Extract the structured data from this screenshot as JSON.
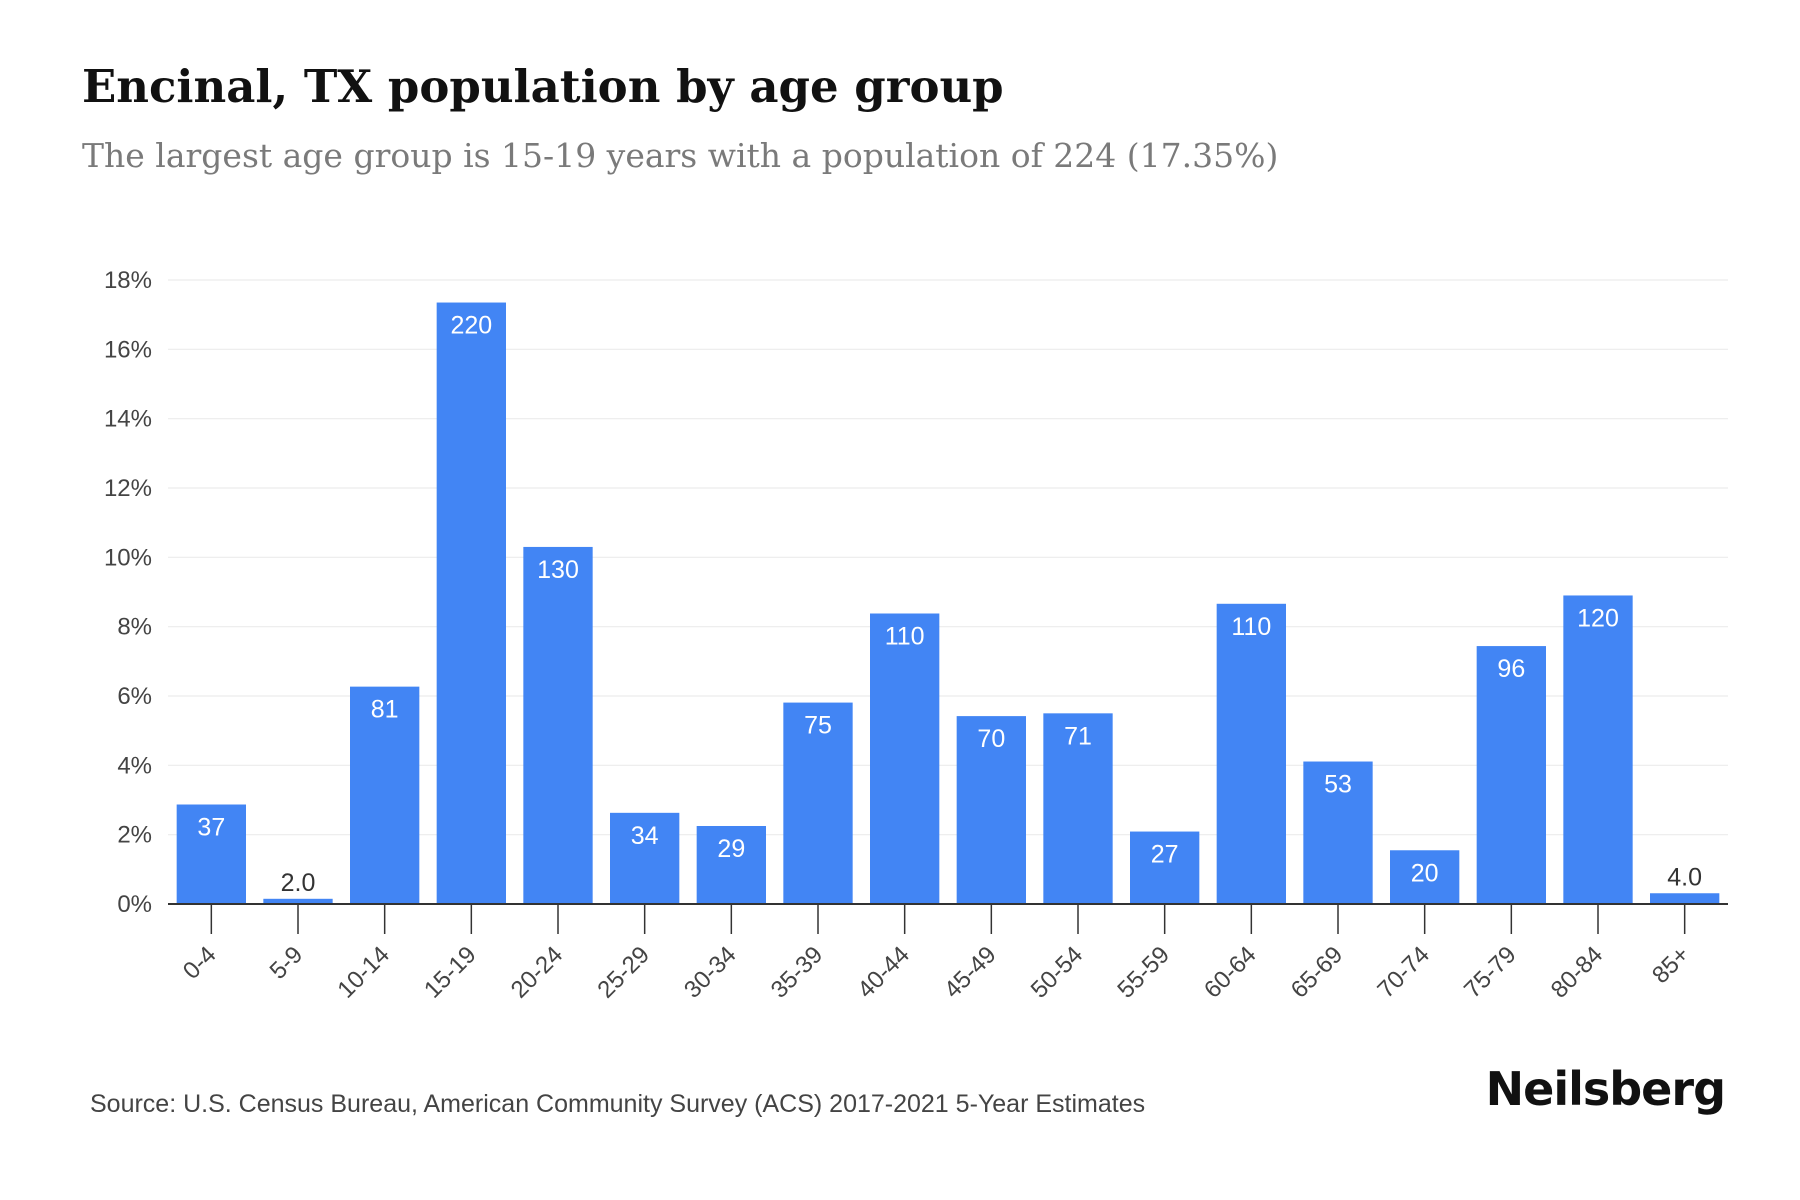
{
  "title": "Encinal, TX population by age group",
  "subtitle": "The largest age group is 15-19 years with a population of 224 (17.35%)",
  "source": "Source: U.S. Census Bureau, American Community Survey (ACS) 2017-2021 5-Year Estimates",
  "brand": "Neilsberg",
  "colors": {
    "bar": "#4285f4",
    "bar_label_inside": "#ffffff",
    "bar_label_outside": "#333333",
    "grid": "#ececec",
    "axis": "#333333",
    "tick_text": "#444444"
  },
  "chart_data": {
    "type": "bar",
    "title": "Encinal, TX population by age group",
    "subtitle": "The largest age group is 15-19 years with a population of 224 (17.35%)",
    "xlabel": "",
    "ylabel": "",
    "categories": [
      "0-4",
      "5-9",
      "10-14",
      "15-19",
      "20-24",
      "25-29",
      "30-34",
      "35-39",
      "40-44",
      "45-49",
      "50-54",
      "55-59",
      "60-64",
      "65-69",
      "70-74",
      "75-79",
      "80-84",
      "85+"
    ],
    "values": [
      2.87,
      0.15,
      6.27,
      17.35,
      10.3,
      2.63,
      2.25,
      5.81,
      8.38,
      5.42,
      5.5,
      2.09,
      8.66,
      4.11,
      1.55,
      7.44,
      8.9,
      0.31
    ],
    "data_labels": [
      "37",
      "2.0",
      "81",
      "220",
      "130",
      "34",
      "29",
      "75",
      "110",
      "70",
      "71",
      "27",
      "110",
      "53",
      "20",
      "96",
      "120",
      "4.0"
    ],
    "ylim": [
      0,
      18
    ],
    "yticks": [
      0,
      2,
      4,
      6,
      8,
      10,
      12,
      14,
      16,
      18
    ],
    "ytick_labels": [
      "0%",
      "2%",
      "4%",
      "6%",
      "8%",
      "10%",
      "12%",
      "14%",
      "16%",
      "18%"
    ],
    "grid": true,
    "legend": "none"
  }
}
